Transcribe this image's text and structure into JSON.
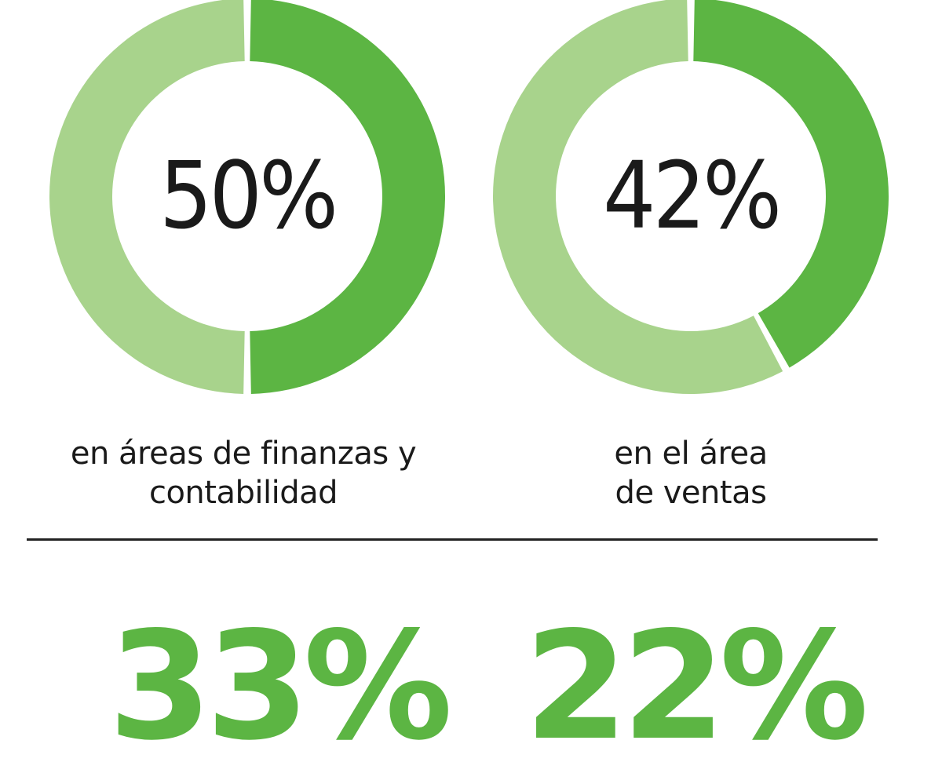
{
  "colors": {
    "filled": "#5cb543",
    "remainder": "#a8d38c",
    "text": "#1a1a1a",
    "divider": "#222222",
    "big_stat": "#5cb543"
  },
  "chart_data": [
    {
      "type": "pie",
      "variant": "donut",
      "center_label": "50%",
      "value": 50,
      "caption_lines": [
        "en áreas de finanzas y",
        "contabilidad"
      ]
    },
    {
      "type": "pie",
      "variant": "donut",
      "center_label": "42%",
      "value": 42,
      "caption_lines": [
        "en el área",
        "de ventas"
      ]
    }
  ],
  "stats": [
    {
      "label": "33%"
    },
    {
      "label": "22%"
    }
  ]
}
